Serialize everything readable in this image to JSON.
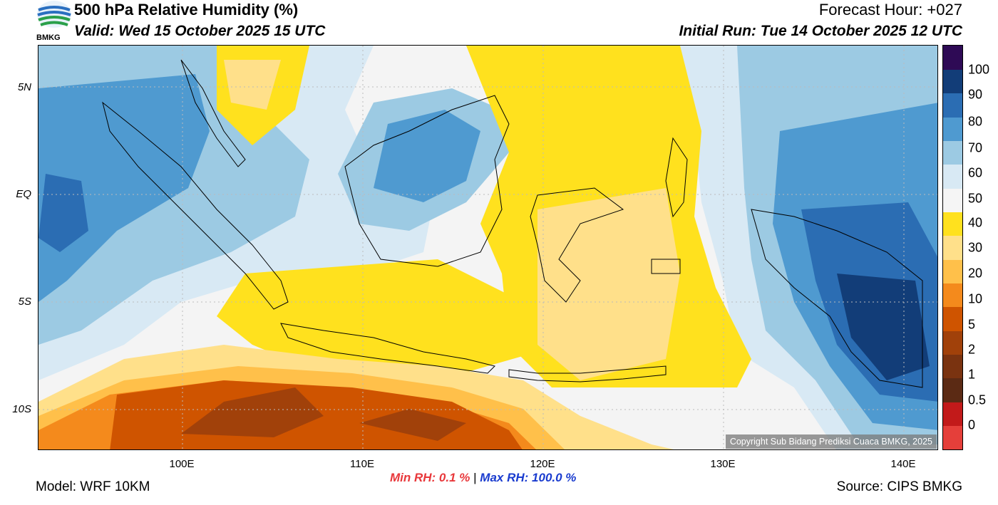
{
  "header": {
    "title": "500 hPa Relative Humidity (%)",
    "valid": "Valid: Wed 15 October 2025 15 UTC",
    "forecast_hour": "Forecast Hour: +027",
    "initial_run": "Initial Run: Tue 14 October 2025 12 UTC",
    "logo_text": "BMKG"
  },
  "map": {
    "lat_labels": [
      "5N",
      "EQ",
      "5S",
      "10S"
    ],
    "lon_labels": [
      "100E",
      "110E",
      "120E",
      "130E",
      "140E"
    ],
    "copyright": "Copyright Sub Bidang Prediksi Cuaca BMKG, 2025"
  },
  "colorbar": {
    "labels": [
      "100",
      "90",
      "80",
      "70",
      "60",
      "50",
      "40",
      "30",
      "20",
      "10",
      "5",
      "2",
      "1",
      "0.5",
      "0"
    ],
    "colors": [
      "#e53f3a",
      "#c21a1a",
      "#5b2a14",
      "#7a3310",
      "#a1410a",
      "#cf5400",
      "#f48a1c",
      "#ffc04a",
      "#ffe08a",
      "#ffe11e",
      "#f5f5f5",
      "#d8e9f4",
      "#9ccae3",
      "#4f9ad0",
      "#2b6db3",
      "#123d78",
      "#2e0a55"
    ]
  },
  "footer": {
    "min_rh": "Min RH:   0.1 %",
    "separator": "|",
    "max_rh": "Max RH: 100.0 %",
    "model": "Model: WRF 10KM",
    "source": "Source: CIPS BMKG"
  }
}
